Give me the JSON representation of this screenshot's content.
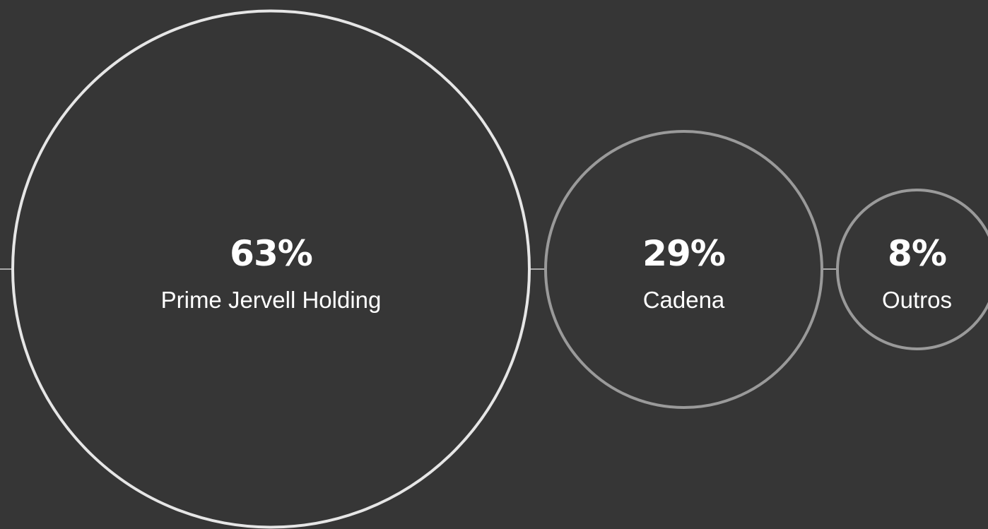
{
  "chart_data": {
    "type": "bubble",
    "title": "",
    "xlabel": "",
    "ylabel": "",
    "categories": [
      "Prime Jervell Holding",
      "Cadena",
      "Outros"
    ],
    "values": [
      63,
      29,
      8
    ],
    "value_labels": [
      "63%",
      "29%",
      "8%"
    ],
    "unit": "%",
    "grid": false,
    "legend": "none"
  },
  "colors": {
    "background": "#363636",
    "primary_stroke": "#e6e6e6",
    "secondary_stroke": "#9a9a9a",
    "connector": "#cfcfcf",
    "text": "#ffffff"
  }
}
